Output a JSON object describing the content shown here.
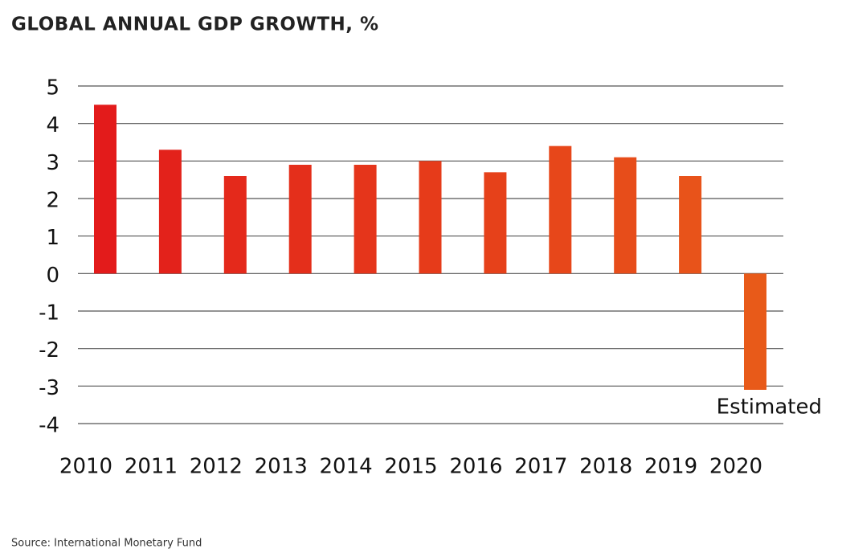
{
  "chart_data": {
    "type": "bar",
    "title": "GLOBAL ANNUAL GDP GROWTH, %",
    "categories": [
      "2010",
      "2011",
      "2012",
      "2013",
      "2014",
      "2015",
      "2016",
      "2017",
      "2018",
      "2019",
      "2020"
    ],
    "values": [
      4.5,
      3.3,
      2.6,
      2.9,
      2.9,
      3.0,
      2.7,
      3.4,
      3.1,
      2.6,
      -3.1
    ],
    "colors": [
      "#e31b1b",
      "#e3221b",
      "#e4291b",
      "#e42f1b",
      "#e5351b",
      "#e63b1a",
      "#e6411a",
      "#e7471a",
      "#e74d1a",
      "#e8531a",
      "#e85a19"
    ],
    "ylim": [
      -4,
      5
    ],
    "yticks": [
      5,
      4,
      3,
      2,
      1,
      0,
      -1,
      -2,
      -3,
      -4
    ],
    "grid": true,
    "annotation": "Estimated",
    "source": "Source: International Monetary Fund"
  }
}
